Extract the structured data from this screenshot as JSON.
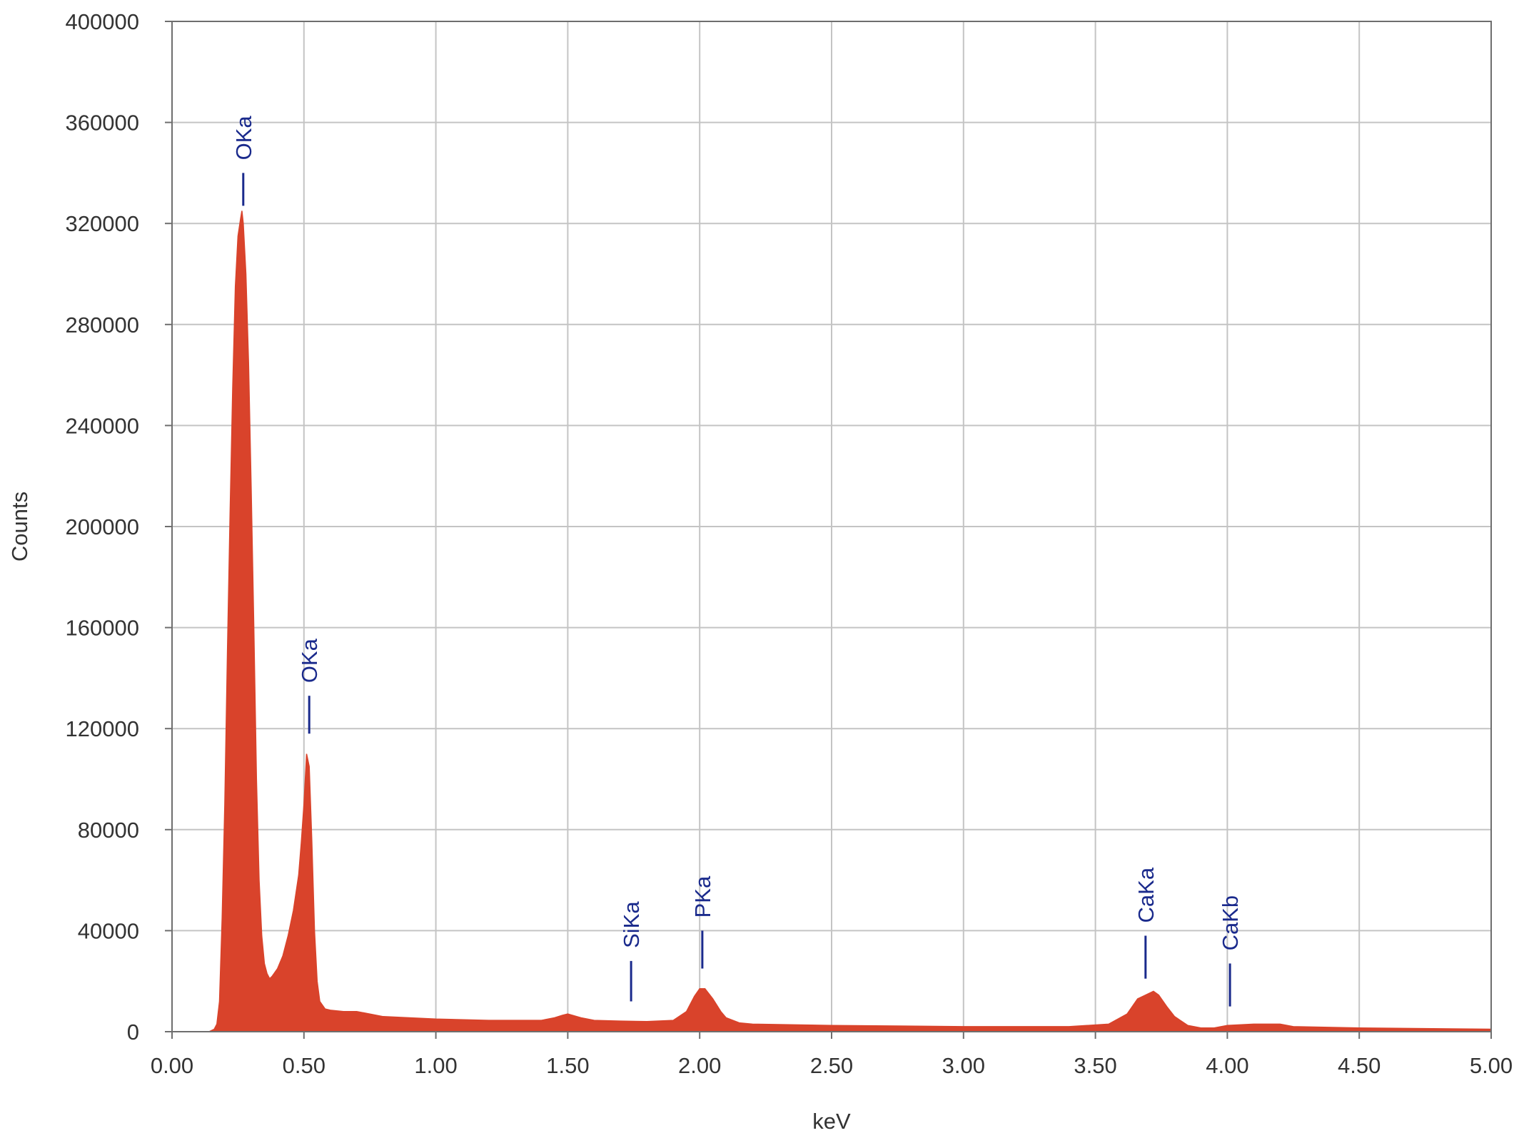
{
  "chart_data": {
    "type": "area",
    "title": "",
    "xlabel": "keV",
    "ylabel": "Counts",
    "xlim": [
      0,
      5
    ],
    "ylim": [
      0,
      400000
    ],
    "grid": true,
    "legend": "none",
    "x_ticks": [
      0,
      0.5,
      1,
      1.5,
      2,
      2.5,
      3,
      3.5,
      4,
      4.5,
      5
    ],
    "x_tick_labels": [
      "0.00",
      "0.50",
      "1.00",
      "1.50",
      "2.00",
      "2.50",
      "3.00",
      "3.50",
      "4.00",
      "4.50",
      "5.00"
    ],
    "y_ticks": [
      0,
      40000,
      80000,
      120000,
      160000,
      200000,
      240000,
      280000,
      320000,
      360000,
      400000
    ],
    "y_tick_labels": [
      "0",
      "40000",
      "80000",
      "120000",
      "160000",
      "200000",
      "240000",
      "280000",
      "320000",
      "360000",
      "400000"
    ],
    "series": [
      {
        "color": "#d9432b",
        "x": [
          0.1,
          0.14,
          0.16,
          0.17,
          0.18,
          0.19,
          0.2,
          0.21,
          0.22,
          0.23,
          0.24,
          0.25,
          0.26,
          0.265,
          0.27,
          0.28,
          0.29,
          0.3,
          0.31,
          0.32,
          0.33,
          0.34,
          0.35,
          0.36,
          0.37,
          0.38,
          0.4,
          0.42,
          0.44,
          0.46,
          0.48,
          0.49,
          0.5,
          0.51,
          0.52,
          0.53,
          0.54,
          0.55,
          0.56,
          0.58,
          0.6,
          0.65,
          0.7,
          0.75,
          0.8,
          0.9,
          1.0,
          1.2,
          1.4,
          1.45,
          1.48,
          1.5,
          1.55,
          1.6,
          1.7,
          1.8,
          1.9,
          1.95,
          1.98,
          2.0,
          2.02,
          2.05,
          2.08,
          2.1,
          2.15,
          2.2,
          2.5,
          3.0,
          3.4,
          3.55,
          3.62,
          3.66,
          3.7,
          3.72,
          3.74,
          3.77,
          3.8,
          3.85,
          3.9,
          3.95,
          4.0,
          4.1,
          4.2,
          4.25,
          4.5,
          5.0
        ],
        "y": [
          0,
          0,
          1000,
          3000,
          12000,
          45000,
          90000,
          150000,
          205000,
          255000,
          295000,
          315000,
          322000,
          325000,
          320000,
          300000,
          265000,
          215000,
          160000,
          100000,
          60000,
          38000,
          27000,
          23000,
          21000,
          22000,
          25000,
          30000,
          38000,
          48000,
          62000,
          75000,
          90000,
          110000,
          105000,
          75000,
          40000,
          20000,
          12000,
          9000,
          8500,
          8000,
          8000,
          7000,
          6000,
          5500,
          5000,
          4500,
          4500,
          5500,
          6500,
          7000,
          5500,
          4500,
          4200,
          4000,
          4500,
          8000,
          14000,
          17000,
          17000,
          13000,
          8000,
          5500,
          3500,
          3000,
          2500,
          2000,
          2000,
          3000,
          7000,
          13000,
          15000,
          16000,
          14500,
          10000,
          6000,
          2500,
          1500,
          1500,
          2500,
          3000,
          3000,
          2000,
          1500,
          1000
        ]
      }
    ],
    "annotations": [
      {
        "text": "OKa",
        "x": 0.27,
        "y_low": 327000,
        "y_high": 340000
      },
      {
        "text": "OKa",
        "x": 0.52,
        "y_low": 118000,
        "y_high": 133000
      },
      {
        "text": "SiKa",
        "x": 1.74,
        "y_low": 12000,
        "y_high": 28000
      },
      {
        "text": "PKa",
        "x": 2.01,
        "y_low": 25000,
        "y_high": 40000
      },
      {
        "text": "CaKa",
        "x": 3.69,
        "y_low": 21000,
        "y_high": 38000
      },
      {
        "text": "CaKb",
        "x": 4.01,
        "y_low": 10000,
        "y_high": 27000
      }
    ],
    "annotation_color": "#1a2a8c"
  }
}
